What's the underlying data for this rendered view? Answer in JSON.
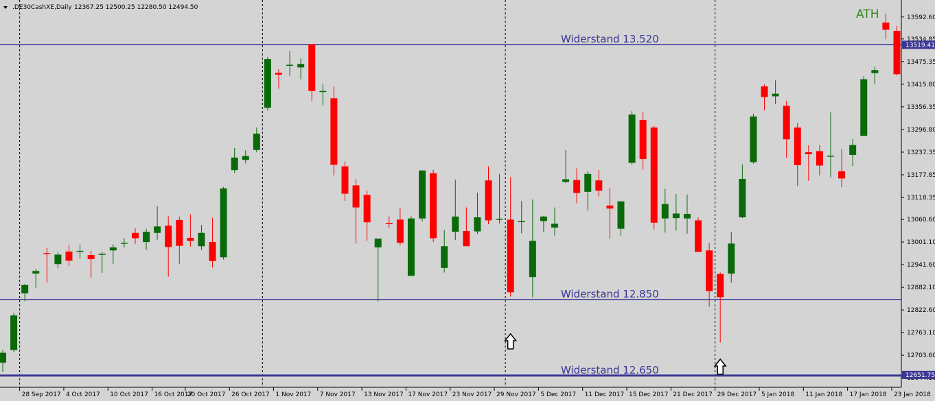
{
  "header": {
    "symbol": ".DE30CashXE,Daily",
    "ohlc": "12367.25 12500.25 12280.50 12494.50",
    "menu_icon": "triangle-down-icon"
  },
  "annotations": {
    "ath": "ATH",
    "arrow_icon": "up-arrow-icon"
  },
  "colors": {
    "background": "#d4d4d4",
    "bull": "#0a6a0a",
    "bear": "#ff0000",
    "resistance_line": "#3b3795",
    "ath": "#2f8a1e",
    "grid": "#000000"
  },
  "chart_data": {
    "type": "candlestick",
    "title": ".DE30CashXE,Daily",
    "ylim": [
      12621,
      13630
    ],
    "y_ticks": [
      "13592.60",
      "13534.85",
      "13475.35",
      "13415.80",
      "13356.35",
      "13296.80",
      "13237.35",
      "13177.85",
      "13118.35",
      "13060.60",
      "13001.10",
      "12941.60",
      "12882.10",
      "12822.60",
      "12763.10",
      "12703.60",
      "12644.10"
    ],
    "x_ticks": [
      "28 Sep 2017",
      "4 Oct 2017",
      "10 Oct 2017",
      "16 Oct 2017",
      "20 Oct 2017",
      "26 Oct 2017",
      "1 Nov 2017",
      "7 Nov 2017",
      "13 Nov 2017",
      "17 Nov 2017",
      "23 Nov 2017",
      "29 Nov 2017",
      "5 Dec 2017",
      "11 Dec 2017",
      "15 Dec 2017",
      "21 Dec 2017",
      "29 Dec 2017",
      "5 Jan 2018",
      "11 Jan 2018",
      "17 Jan 2018",
      "23 Jan 2018"
    ],
    "resistance_levels": [
      {
        "label": "Widerstand 13.520",
        "value": 13520,
        "tag": "13519.41"
      },
      {
        "label": "Widerstand 12.850",
        "value": 12850,
        "tag": ""
      },
      {
        "label": "Widerstand 12.650",
        "value": 12650,
        "tag": "12651.75"
      }
    ],
    "candles": [
      {
        "o": 12684,
        "h": 12717,
        "l": 12660,
        "c": 12710
      },
      {
        "o": 12717,
        "h": 12815,
        "l": 12712,
        "c": 12808
      },
      {
        "o": 12866,
        "h": 12891,
        "l": 12845,
        "c": 12888
      },
      {
        "o": 12918,
        "h": 12930,
        "l": 12880,
        "c": 12925
      },
      {
        "o": 12972,
        "h": 12985,
        "l": 12894,
        "c": 12970
      },
      {
        "o": 12943,
        "h": 12975,
        "l": 12932,
        "c": 12968
      },
      {
        "o": 12976,
        "h": 12994,
        "l": 12938,
        "c": 12952
      },
      {
        "o": 12977,
        "h": 12995,
        "l": 12957,
        "c": 12978
      },
      {
        "o": 12967,
        "h": 12978,
        "l": 12908,
        "c": 12956
      },
      {
        "o": 12968,
        "h": 12975,
        "l": 12920,
        "c": 12970
      },
      {
        "o": 12979,
        "h": 12995,
        "l": 12943,
        "c": 12987
      },
      {
        "o": 12997,
        "h": 13011,
        "l": 12987,
        "c": 12999
      },
      {
        "o": 13025,
        "h": 13037,
        "l": 12996,
        "c": 13011
      },
      {
        "o": 13001,
        "h": 13036,
        "l": 12980,
        "c": 13028
      },
      {
        "o": 13025,
        "h": 13095,
        "l": 13007,
        "c": 13042
      },
      {
        "o": 13044,
        "h": 13069,
        "l": 12910,
        "c": 12988
      },
      {
        "o": 13059,
        "h": 13068,
        "l": 12944,
        "c": 12991
      },
      {
        "o": 13012,
        "h": 13074,
        "l": 12989,
        "c": 13004
      },
      {
        "o": 12990,
        "h": 13046,
        "l": 12980,
        "c": 13025
      },
      {
        "o": 13001,
        "h": 13065,
        "l": 12934,
        "c": 12951
      },
      {
        "o": 12961,
        "h": 13146,
        "l": 12955,
        "c": 13142
      },
      {
        "o": 13190,
        "h": 13248,
        "l": 13183,
        "c": 13223
      },
      {
        "o": 13217,
        "h": 13242,
        "l": 13208,
        "c": 13227
      },
      {
        "o": 13243,
        "h": 13302,
        "l": 13237,
        "c": 13286
      },
      {
        "o": 13354,
        "h": 13488,
        "l": 13346,
        "c": 13482
      },
      {
        "o": 13446,
        "h": 13455,
        "l": 13404,
        "c": 13441
      },
      {
        "o": 13467,
        "h": 13503,
        "l": 13438,
        "c": 13467
      },
      {
        "o": 13460,
        "h": 13484,
        "l": 13429,
        "c": 13469
      },
      {
        "o": 13521,
        "h": 13521,
        "l": 13372,
        "c": 13398
      },
      {
        "o": 13398,
        "h": 13417,
        "l": 13360,
        "c": 13398
      },
      {
        "o": 13379,
        "h": 13410,
        "l": 13176,
        "c": 13204
      },
      {
        "o": 13200,
        "h": 13213,
        "l": 13109,
        "c": 13128
      },
      {
        "o": 13150,
        "h": 13166,
        "l": 12997,
        "c": 13092
      },
      {
        "o": 13125,
        "h": 13136,
        "l": 13005,
        "c": 13053
      },
      {
        "o": 12987,
        "h": 13003,
        "l": 12845,
        "c": 13010
      },
      {
        "o": 13051,
        "h": 13069,
        "l": 13038,
        "c": 13050
      },
      {
        "o": 13060,
        "h": 13090,
        "l": 12992,
        "c": 12999
      },
      {
        "o": 12912,
        "h": 13069,
        "l": 12912,
        "c": 13063
      },
      {
        "o": 13063,
        "h": 13190,
        "l": 13055,
        "c": 13189
      },
      {
        "o": 13182,
        "h": 13191,
        "l": 13001,
        "c": 13011
      },
      {
        "o": 12933,
        "h": 13032,
        "l": 12921,
        "c": 12990
      },
      {
        "o": 13028,
        "h": 13165,
        "l": 13006,
        "c": 13068
      },
      {
        "o": 13030,
        "h": 13092,
        "l": 12990,
        "c": 12990
      },
      {
        "o": 13029,
        "h": 13131,
        "l": 13022,
        "c": 13066
      },
      {
        "o": 13163,
        "h": 13200,
        "l": 13048,
        "c": 13058
      },
      {
        "o": 13060,
        "h": 13180,
        "l": 13050,
        "c": 13062
      },
      {
        "o": 13060,
        "h": 13172,
        "l": 12858,
        "c": 12869
      },
      {
        "o": 13054,
        "h": 13109,
        "l": 13024,
        "c": 13056
      },
      {
        "o": 12909,
        "h": 13113,
        "l": 12856,
        "c": 13004
      },
      {
        "o": 13056,
        "h": 13070,
        "l": 13028,
        "c": 13068
      },
      {
        "o": 13039,
        "h": 13092,
        "l": 13018,
        "c": 13049
      },
      {
        "o": 13159,
        "h": 13243,
        "l": 13156,
        "c": 13166
      },
      {
        "o": 13164,
        "h": 13195,
        "l": 13103,
        "c": 13130
      },
      {
        "o": 13133,
        "h": 13187,
        "l": 13084,
        "c": 13180
      },
      {
        "o": 13163,
        "h": 13190,
        "l": 13121,
        "c": 13136
      },
      {
        "o": 13097,
        "h": 13143,
        "l": 13010,
        "c": 13089
      },
      {
        "o": 13036,
        "h": 13108,
        "l": 13018,
        "c": 13108
      },
      {
        "o": 13209,
        "h": 13345,
        "l": 13204,
        "c": 13336
      },
      {
        "o": 13322,
        "h": 13342,
        "l": 13191,
        "c": 13219
      },
      {
        "o": 13302,
        "h": 13306,
        "l": 13034,
        "c": 13052
      },
      {
        "o": 13063,
        "h": 13141,
        "l": 13026,
        "c": 13101
      },
      {
        "o": 13064,
        "h": 13127,
        "l": 13031,
        "c": 13076
      },
      {
        "o": 13063,
        "h": 13126,
        "l": 13023,
        "c": 13075
      },
      {
        "o": 13058,
        "h": 13065,
        "l": 12975,
        "c": 12975
      },
      {
        "o": 12979,
        "h": 12999,
        "l": 12831,
        "c": 12872
      },
      {
        "o": 12917,
        "h": 12921,
        "l": 12737,
        "c": 12856
      },
      {
        "o": 12918,
        "h": 13028,
        "l": 12894,
        "c": 12997
      },
      {
        "o": 13066,
        "h": 13205,
        "l": 13064,
        "c": 13167
      },
      {
        "o": 13211,
        "h": 13338,
        "l": 13207,
        "c": 13331
      },
      {
        "o": 13410,
        "h": 13415,
        "l": 13347,
        "c": 13382
      },
      {
        "o": 13384,
        "h": 13426,
        "l": 13363,
        "c": 13391
      },
      {
        "o": 13359,
        "h": 13372,
        "l": 13222,
        "c": 13271
      },
      {
        "o": 13302,
        "h": 13314,
        "l": 13148,
        "c": 13203
      },
      {
        "o": 13237,
        "h": 13255,
        "l": 13162,
        "c": 13232
      },
      {
        "o": 13240,
        "h": 13256,
        "l": 13176,
        "c": 13202
      },
      {
        "o": 13226,
        "h": 13342,
        "l": 13171,
        "c": 13228
      },
      {
        "o": 13187,
        "h": 13246,
        "l": 13145,
        "c": 13168
      },
      {
        "o": 13230,
        "h": 13272,
        "l": 13201,
        "c": 13256
      },
      {
        "o": 13280,
        "h": 13437,
        "l": 13280,
        "c": 13429
      },
      {
        "o": 13445,
        "h": 13462,
        "l": 13416,
        "c": 13453
      },
      {
        "o": 13578,
        "h": 13601,
        "l": 13534,
        "c": 13559
      },
      {
        "o": 13556,
        "h": 13569,
        "l": 13439,
        "c": 13442
      }
    ]
  }
}
